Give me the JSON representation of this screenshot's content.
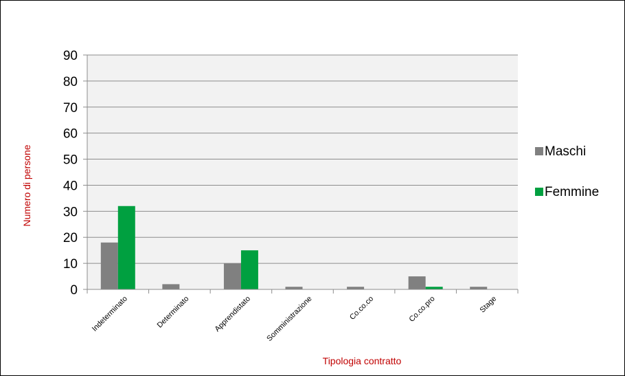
{
  "chart_data": {
    "type": "bar",
    "categories": [
      "Indeterminato",
      "Determinato",
      "Apprendistato",
      "Somministrazione",
      "Co.co.co",
      "Co.co.pro",
      "Stage"
    ],
    "series": [
      {
        "name": "Maschi",
        "color": "#808080",
        "values": [
          18,
          2,
          10,
          1,
          1,
          5,
          1
        ]
      },
      {
        "name": "Femmine",
        "color": "#00a040",
        "values": [
          32,
          0,
          15,
          0,
          0,
          1,
          0
        ]
      }
    ],
    "title": "",
    "xlabel": "Tipologia contratto",
    "ylabel": "Numero di persone",
    "ylim": [
      0,
      90
    ],
    "yticks": [
      0,
      10,
      20,
      30,
      40,
      50,
      60,
      70,
      80,
      90
    ],
    "grid": true,
    "legend_position": "right",
    "plot_background": "#f2f2f2"
  }
}
